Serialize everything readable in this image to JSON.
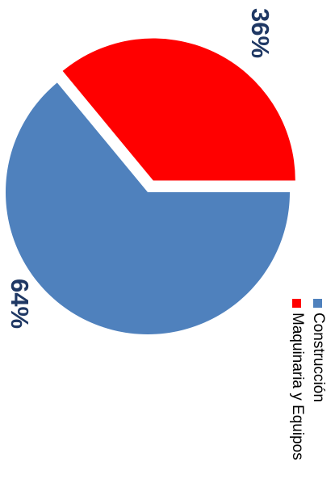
{
  "chart_data": {
    "type": "pie",
    "title": "",
    "slices": [
      {
        "label": "Construcción",
        "value": 64,
        "display": "64%",
        "color": "#4f81bd"
      },
      {
        "label": "Maquinaria y Equipos",
        "value": 36,
        "display": "36%",
        "color": "#ff0000"
      }
    ],
    "exploded": "Maquinaria y Equipos",
    "legend_position": "right",
    "orientation": "rotated 90 degrees clockwise"
  }
}
